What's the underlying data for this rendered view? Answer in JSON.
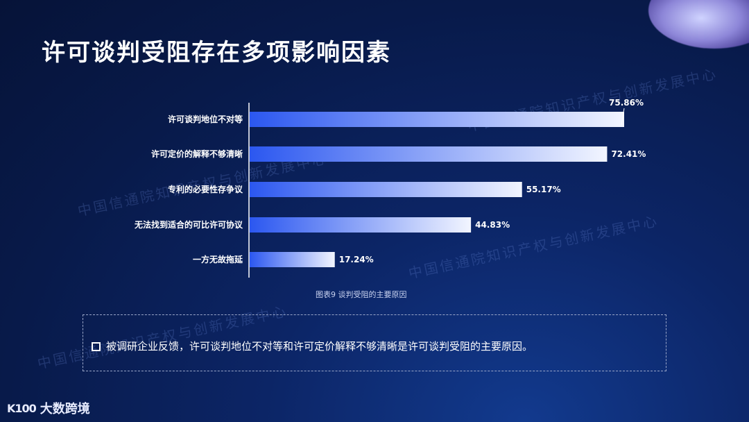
{
  "page": {
    "title": "许可谈判受阻存在多项影响因素",
    "caption": "图表9 谈判受阻的主要原因",
    "note": "被调研企业反馈，许可谈判地位不对等和许可定价解释不够清晰是许可谈判受阻的主要原因。",
    "watermark": "中国信通院知识产权与创新发展中心",
    "logo_mark": "K100",
    "logo_text": "大数跨境"
  },
  "colors": {
    "bar_start": "#2b57f0",
    "bar_end": "#f2f5ff",
    "axis": "#ffffff",
    "text": "#ffffff"
  },
  "chart_data": {
    "type": "bar",
    "orientation": "horizontal",
    "categories": [
      "许可谈判地位不对等",
      "许可定价的解释不够清晰",
      "专利的必要性存争议",
      "无法找到适合的可比许可协议",
      "一方无故拖延"
    ],
    "values": [
      75.86,
      72.41,
      55.17,
      44.83,
      17.24
    ],
    "labels": [
      "75.86%",
      "72.41%",
      "55.17%",
      "44.83%",
      "17.24%"
    ],
    "xlim": [
      0,
      75.86
    ],
    "title": "",
    "xlabel": "",
    "ylabel": "",
    "grid": false,
    "legend": false
  }
}
